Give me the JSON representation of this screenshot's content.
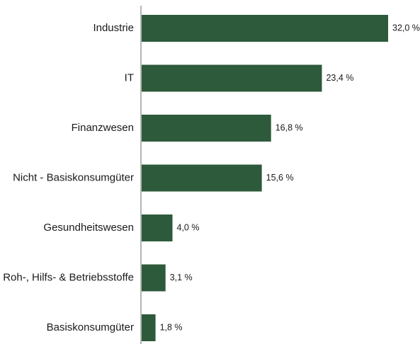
{
  "chart_data": {
    "type": "bar",
    "orientation": "horizontal",
    "categories": [
      "Industrie",
      "IT",
      "Finanzwesen",
      "Nicht - Basiskonsumgüter",
      "Gesundheitswesen",
      "Roh-, Hilfs- & Betriebsstoffe",
      "Basiskonsumgüter"
    ],
    "values": [
      32.0,
      23.4,
      16.8,
      15.6,
      4.0,
      3.1,
      1.8
    ],
    "value_labels": [
      "32,0 %",
      "23,4 %",
      "16,8 %",
      "15,6 %",
      "4,0 %",
      "3,1 %",
      "1,8 %"
    ],
    "unit": "%",
    "xlim": [
      0,
      32.0
    ],
    "grid": false,
    "legend": "none",
    "bar_color": "#2d5a3a",
    "axis_color": "#6b6b6b"
  }
}
